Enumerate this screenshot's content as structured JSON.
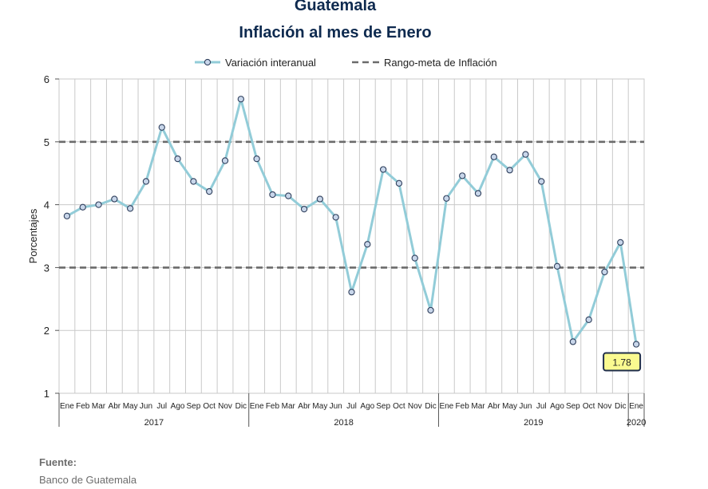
{
  "page": {
    "title": "Guatemala",
    "subtitle": "Inflación al mes de Enero",
    "source_label": "Fuente:",
    "source_value": "Banco de Guatemala"
  },
  "colors": {
    "series": "#92ccd8",
    "marker_fill": "#c8d6ea",
    "marker_stroke": "#2f3f5c",
    "target": "#6b6b6b",
    "grid": "#c9c9c9",
    "callout_bg": "#fafa90",
    "callout_border": "#1f2d4a"
  },
  "chart_data": {
    "type": "line",
    "ylabel": "Porcentajes",
    "ylim": [
      1,
      6
    ],
    "yticks": [
      1,
      2,
      3,
      4,
      5,
      6
    ],
    "grid": true,
    "legend": {
      "position": "top",
      "entries": [
        "Variación interanual",
        "Rango-meta de Inflación"
      ]
    },
    "categories": [
      "Ene",
      "Feb",
      "Mar",
      "Abr",
      "May",
      "Jun",
      "Jul",
      "Ago",
      "Sep",
      "Oct",
      "Nov",
      "Dic",
      "Ene",
      "Feb",
      "Mar",
      "Abr",
      "May",
      "Jun",
      "Jul",
      "Ago",
      "Sep",
      "Oct",
      "Nov",
      "Dic",
      "Ene",
      "Feb",
      "Mar",
      "Abr",
      "May",
      "Jun",
      "Jul",
      "Ago",
      "Sep",
      "Oct",
      "Nov",
      "Dic",
      "Ene"
    ],
    "year_groups": [
      {
        "label": "2017",
        "start": 0,
        "end": 11
      },
      {
        "label": "2018",
        "start": 12,
        "end": 23
      },
      {
        "label": "2019",
        "start": 24,
        "end": 35
      },
      {
        "label": "2020",
        "start": 36,
        "end": 36
      }
    ],
    "series": [
      {
        "name": "Variación interanual",
        "values": [
          3.82,
          3.96,
          4.0,
          4.09,
          3.94,
          4.37,
          5.23,
          4.73,
          4.37,
          4.21,
          4.7,
          5.68,
          4.73,
          4.16,
          4.14,
          3.93,
          4.09,
          3.8,
          2.61,
          3.37,
          4.56,
          4.34,
          3.15,
          2.32,
          4.1,
          4.46,
          4.18,
          4.76,
          4.55,
          4.8,
          4.37,
          3.02,
          1.82,
          2.17,
          2.93,
          3.4,
          1.78
        ]
      }
    ],
    "target_range": {
      "name": "Rango-meta de Inflación",
      "values": [
        3,
        5
      ]
    },
    "annotation": {
      "label": "1.78",
      "index": 36
    }
  }
}
